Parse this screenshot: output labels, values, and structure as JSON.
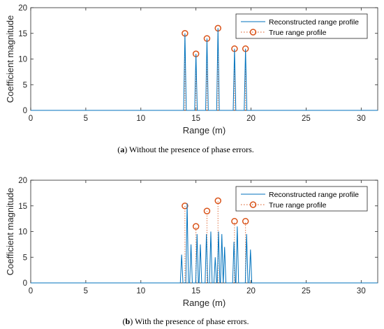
{
  "chart_data": [
    {
      "type": "line",
      "panel": "a",
      "caption_label": "a",
      "caption_text": " Without the presence of phase errors.",
      "xlabel": "Range (m)",
      "ylabel": "Coefficient magnitude",
      "xlim": [
        0,
        31.5
      ],
      "ylim": [
        0,
        20
      ],
      "xticks": [
        "0",
        "5",
        "10",
        "15",
        "20",
        "25",
        "30"
      ],
      "yticks": [
        "0",
        "5",
        "10",
        "15",
        "20"
      ],
      "grid": false,
      "legend_position": "top-right",
      "series": [
        {
          "name": "Reconstructed range profile",
          "style": "solid",
          "color": "#0072BD",
          "peaks": [
            [
              14.0,
              15.0
            ],
            [
              15.0,
              11.0
            ],
            [
              16.0,
              14.0
            ],
            [
              17.0,
              16.0
            ],
            [
              18.5,
              12.0
            ],
            [
              19.5,
              12.0
            ]
          ]
        },
        {
          "name": "True range profile",
          "style": "dotted-stem-circle",
          "color": "#D95319",
          "points": [
            [
              14.0,
              15.0
            ],
            [
              15.0,
              11.0
            ],
            [
              16.0,
              14.0
            ],
            [
              17.0,
              16.0
            ],
            [
              18.5,
              12.0
            ],
            [
              19.5,
              12.0
            ]
          ]
        }
      ]
    },
    {
      "type": "line",
      "panel": "b",
      "caption_label": "b",
      "caption_text": " With the presence of phase errors.",
      "xlabel": "Range (m)",
      "ylabel": "Coefficient magnitude",
      "xlim": [
        0,
        31.5
      ],
      "ylim": [
        0,
        20
      ],
      "xticks": [
        "0",
        "5",
        "10",
        "15",
        "20",
        "25",
        "30"
      ],
      "yticks": [
        "0",
        "5",
        "10",
        "15",
        "20"
      ],
      "grid": false,
      "legend_position": "top-right",
      "series": [
        {
          "name": "Reconstructed range profile",
          "style": "solid",
          "color": "#0072BD",
          "peaks": [
            [
              13.7,
              5.5
            ],
            [
              14.2,
              15.5
            ],
            [
              14.55,
              7.5
            ],
            [
              15.1,
              9.5
            ],
            [
              15.4,
              7.5
            ],
            [
              15.95,
              9.5
            ],
            [
              16.35,
              10.0
            ],
            [
              16.75,
              5.0
            ],
            [
              17.05,
              10.0
            ],
            [
              17.35,
              9.5
            ],
            [
              17.6,
              7.0
            ],
            [
              18.45,
              8.0
            ],
            [
              18.75,
              11.0
            ],
            [
              19.6,
              9.5
            ],
            [
              19.95,
              6.5
            ]
          ]
        },
        {
          "name": "True range profile",
          "style": "dotted-stem-circle",
          "color": "#D95319",
          "points": [
            [
              14.0,
              15.0
            ],
            [
              15.0,
              11.0
            ],
            [
              16.0,
              14.0
            ],
            [
              17.0,
              16.0
            ],
            [
              18.5,
              12.0
            ],
            [
              19.5,
              12.0
            ]
          ]
        }
      ]
    }
  ]
}
